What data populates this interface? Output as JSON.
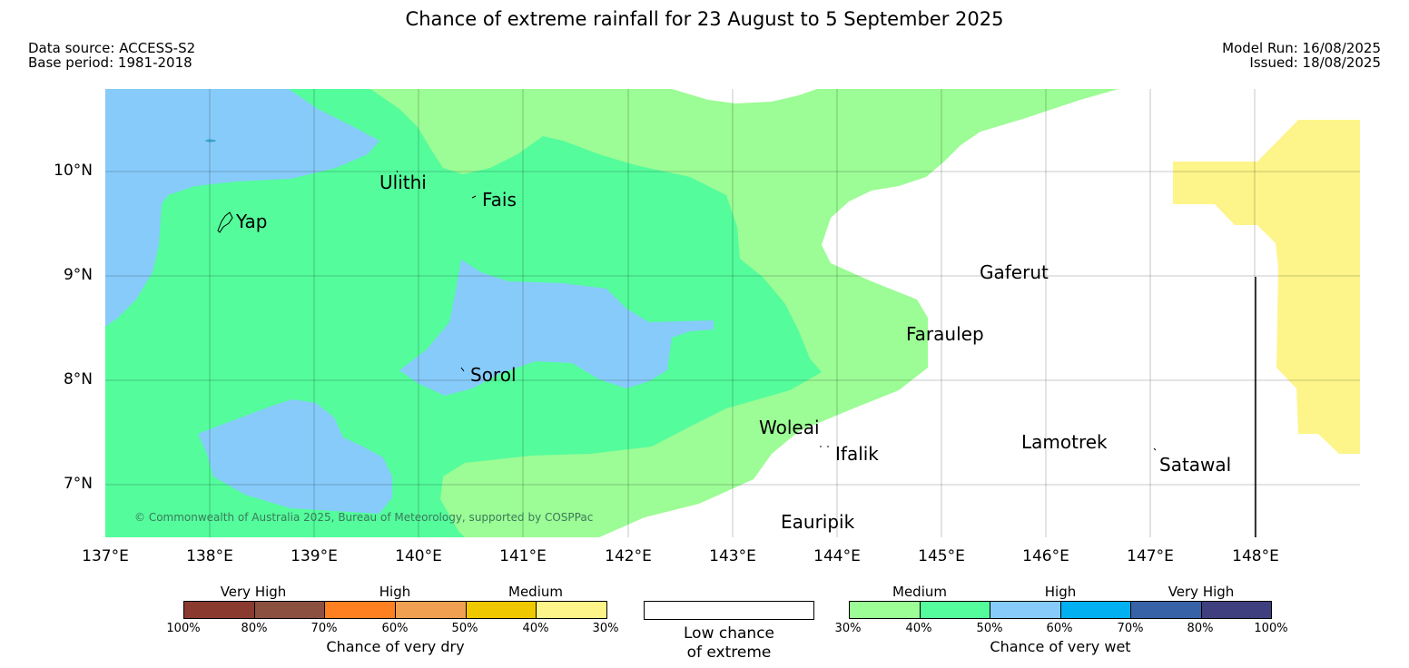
{
  "title": "Chance of extreme rainfall for 23 August to 5 September 2025",
  "meta_left": {
    "line1": "Data source: ACCESS-S2",
    "line2": "Base period: 1981-2018"
  },
  "meta_right": {
    "line1": "Model Run: 16/08/2025",
    "line2": "Issued: 18/08/2025"
  },
  "map": {
    "lon_range": [
      137,
      149
    ],
    "lat_range": [
      6.5,
      10.8
    ],
    "lat_labels": [
      "10°N",
      "9°N",
      "8°N",
      "7°N"
    ],
    "lon_labels": [
      "137°E",
      "138°E",
      "139°E",
      "140°E",
      "141°E",
      "142°E",
      "143°E",
      "144°E",
      "145°E",
      "146°E",
      "147°E",
      "148°E"
    ],
    "places": {
      "ulithi": "Ulithi",
      "fais": "Fais",
      "yap": "Yap",
      "gaferut": "Gaferut",
      "faraulep": "Faraulep",
      "sorol": "Sorol",
      "woleai": "Woleai",
      "ifalik": "Ifalik",
      "lamotrek": "Lamotrek",
      "satawal": "Satawal",
      "eauripik": "Eauripik"
    },
    "copyright": "© Commonwealth of Australia 2025, Bureau of Meteorology, supported by COSPPac",
    "colors": {
      "wet_medium_30_40": "#9cfc95",
      "wet_medium_40_50": "#54fc9c",
      "wet_high_50_60": "#87cbfa",
      "dry_medium_30_40": "#fdf58a",
      "low_chance": "#ffffff"
    }
  },
  "legend": {
    "dry": {
      "groups": [
        "Very High",
        "High",
        "Medium"
      ],
      "ticks": [
        "100%",
        "80%",
        "70%",
        "60%",
        "50%",
        "40%",
        "30%"
      ],
      "colors": [
        "#8b3a2f",
        "#8b5040",
        "#ff8020",
        "#f0a050",
        "#f0c800",
        "#fdf58a"
      ],
      "title": "Chance of very dry"
    },
    "low": {
      "line1": "Low chance",
      "line2": "of extreme"
    },
    "wet": {
      "groups": [
        "Medium",
        "High",
        "Very High"
      ],
      "ticks": [
        "30%",
        "40%",
        "50%",
        "60%",
        "70%",
        "80%",
        "100%"
      ],
      "colors": [
        "#9cfc95",
        "#54fc9c",
        "#87cbfa",
        "#00b0f0",
        "#3862a8",
        "#3f3f7f"
      ],
      "title": "Chance of very wet"
    }
  }
}
